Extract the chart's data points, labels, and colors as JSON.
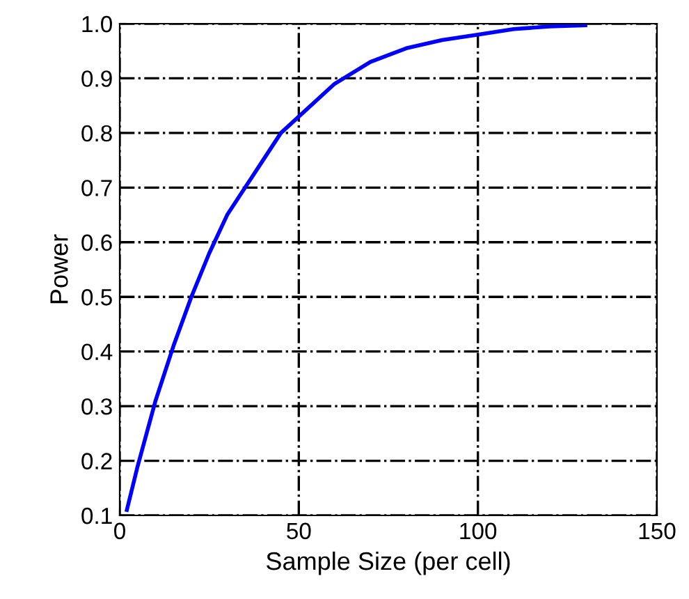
{
  "chart_data": {
    "type": "line",
    "xlabel": "Sample Size (per cell)",
    "ylabel": "Power",
    "x": [
      2,
      5,
      10,
      15,
      20,
      25,
      30,
      35,
      40,
      45,
      50,
      60,
      70,
      80,
      90,
      100,
      110,
      120,
      130
    ],
    "series": [
      {
        "color": "#0000ff",
        "values": [
          0.11,
          0.19,
          0.31,
          0.41,
          0.5,
          0.58,
          0.65,
          0.7,
          0.75,
          0.8,
          0.83,
          0.89,
          0.93,
          0.955,
          0.97,
          0.98,
          0.99,
          0.995,
          0.997
        ]
      }
    ],
    "xlim": [
      0,
      150
    ],
    "ylim": [
      0.1,
      1.0
    ],
    "xticks": [
      0,
      50,
      100,
      150
    ],
    "yticks": [
      {
        "value": 0.1,
        "label": "0.1"
      },
      {
        "value": 0.2,
        "label": "0.2"
      },
      {
        "value": 0.3,
        "label": "0.3"
      },
      {
        "value": 0.4,
        "label": "0.4"
      },
      {
        "value": 0.5,
        "label": "0.5"
      },
      {
        "value": 0.6,
        "label": "0.6"
      },
      {
        "value": 0.7,
        "label": "0.7"
      },
      {
        "value": 0.8,
        "label": "0.8"
      },
      {
        "value": 0.9,
        "label": "0.9"
      },
      {
        "value": 1.0,
        "label": "1.0"
      }
    ],
    "grid": true,
    "marker": "none",
    "line_style": "solid"
  }
}
